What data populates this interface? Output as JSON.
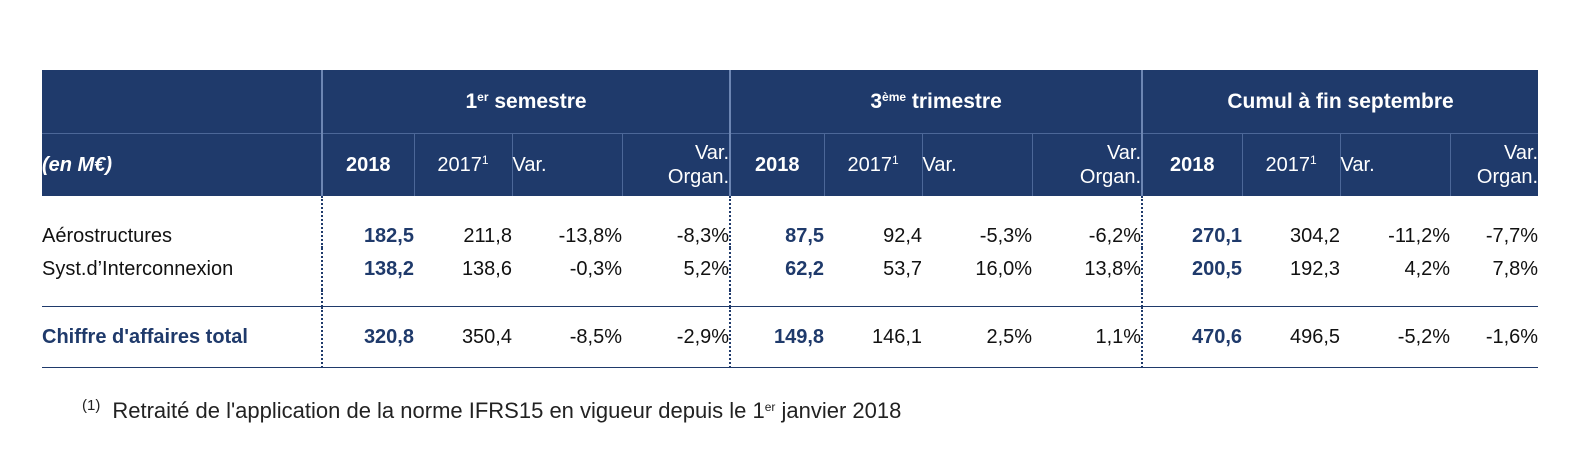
{
  "table": {
    "unit_label": "(en M€)",
    "groups": [
      {
        "label": "1",
        "sup": "er",
        "label_rest": " semestre"
      },
      {
        "label": "3",
        "sup": "ème",
        "label_rest": " trimestre"
      },
      {
        "label": "Cumul à fin septembre",
        "sup": "",
        "label_rest": ""
      }
    ],
    "columns": {
      "year": "2018",
      "prev_year": "2017",
      "prev_year_sup": "1",
      "var": "Var.",
      "var_org_line1": "Var.",
      "var_org_line2": "Organ."
    },
    "rows": [
      {
        "label": "Aérostructures",
        "values": [
          "182,5",
          "211,8",
          "-13,8%",
          "-8,3%",
          "87,5",
          "92,4",
          "-5,3%",
          "-6,2%",
          "270,1",
          "304,2",
          "-11,2%",
          "-7,7%"
        ]
      },
      {
        "label": "Syst.d’Interconnexion",
        "values": [
          "138,2",
          "138,6",
          "-0,3%",
          "5,2%",
          "62,2",
          "53,7",
          "16,0%",
          "13,8%",
          "200,5",
          "192,3",
          "4,2%",
          "7,8%"
        ]
      }
    ],
    "total": {
      "label": "Chiffre d'affaires total",
      "values": [
        "320,8",
        "350,4",
        "-8,5%",
        "-2,9%",
        "149,8",
        "146,1",
        "2,5%",
        "1,1%",
        "470,6",
        "496,5",
        "-5,2%",
        "-1,6%"
      ]
    }
  },
  "footnote": {
    "ref": "(1)",
    "text_before": "Retraité de l'application de la norme IFRS15 en vigueur depuis le 1",
    "sup": "er",
    "text_after": " janvier 2018"
  },
  "colors": {
    "header_bg": "#1f3a6b",
    "bold_text": "#1f3a6b"
  }
}
